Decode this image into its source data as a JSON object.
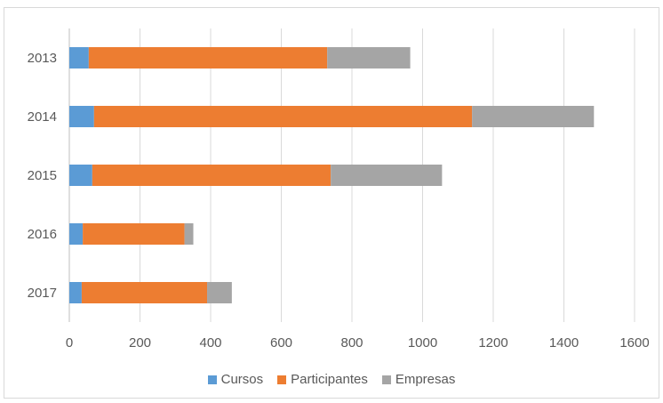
{
  "chart_data": {
    "type": "bar",
    "orientation": "horizontal",
    "stacked": true,
    "categories": [
      "2013",
      "2014",
      "2015",
      "2016",
      "2017"
    ],
    "series": [
      {
        "name": "Cursos",
        "color": "#5b9bd5",
        "values": [
          55,
          70,
          65,
          38,
          35
        ]
      },
      {
        "name": "Participantes",
        "color": "#ed7d31",
        "values": [
          675,
          1070,
          675,
          288,
          355
        ]
      },
      {
        "name": "Empresas",
        "color": "#a5a5a5",
        "values": [
          235,
          345,
          315,
          25,
          70
        ]
      }
    ],
    "xlim": [
      0,
      1600
    ],
    "xticks": [
      "0",
      "200",
      "400",
      "600",
      "800",
      "1000",
      "1200",
      "1400",
      "1600"
    ],
    "grid": "vertical",
    "legend_position": "bottom",
    "title": "",
    "xlabel": "",
    "ylabel": ""
  }
}
